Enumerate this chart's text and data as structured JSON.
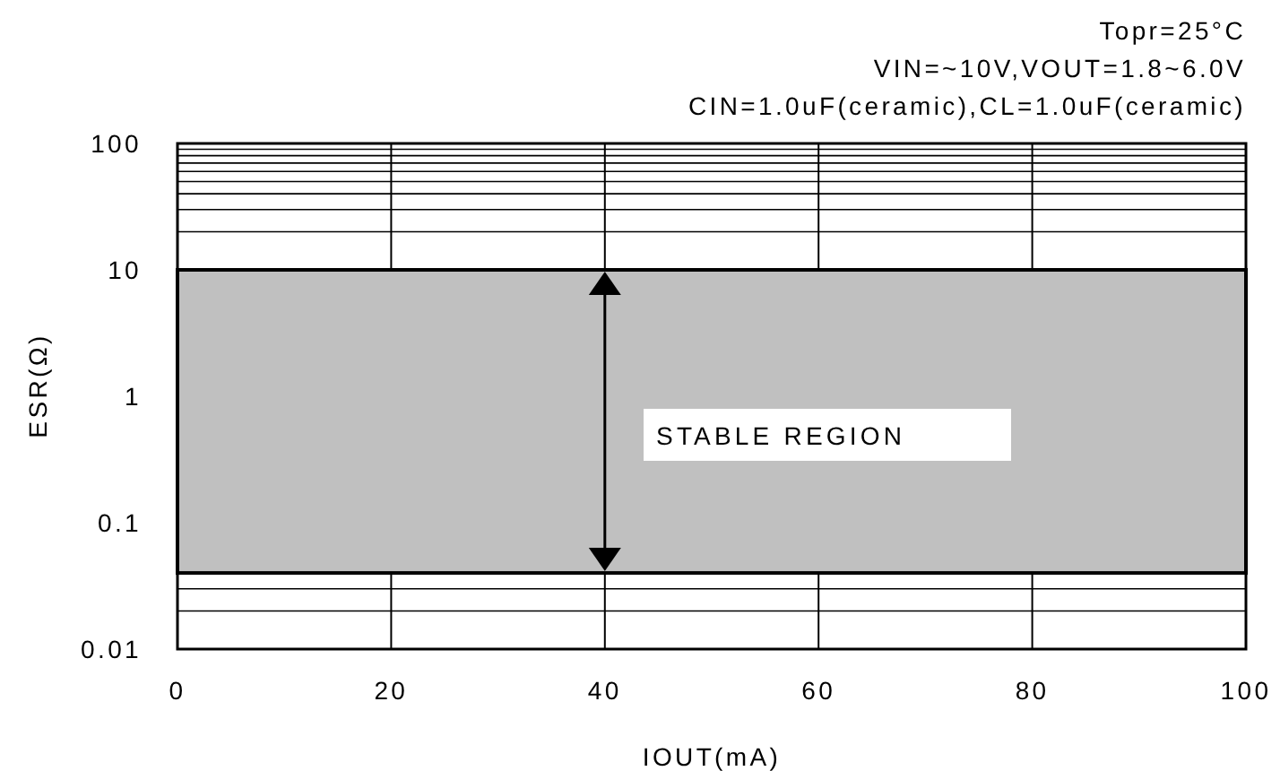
{
  "chart_data": {
    "type": "line",
    "xlabel": "IOUT(mA)",
    "ylabel": "ESR(Ω)",
    "annotations": [
      "Topr=25°C",
      "VIN=~10V,VOUT=1.8~6.0V",
      "CIN=1.0uF(ceramic),CL=1.0uF(ceramic)"
    ],
    "xlim": [
      0,
      100
    ],
    "xticks": [
      0,
      20,
      40,
      60,
      80,
      100
    ],
    "ylim": [
      0.01,
      100
    ],
    "yticks": [
      0.01,
      0.1,
      1,
      10,
      100
    ],
    "log": true,
    "grid": true,
    "bands": [
      {
        "axis": "y",
        "from": 0.04,
        "to": 10,
        "label": "STABLE REGION",
        "color": "#c0c0c0"
      }
    ]
  }
}
